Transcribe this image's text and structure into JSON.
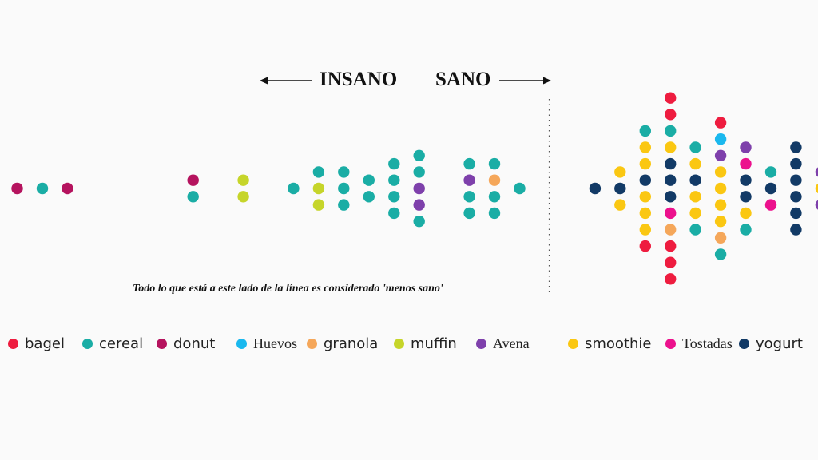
{
  "header": {
    "insano": "INSANO",
    "sano": "SANO"
  },
  "note": "Todo lo que está a este lado de la línea es considerado 'menos sano'",
  "colors": {
    "bagel": "#ee1c3f",
    "cereal": "#1aada5",
    "donut": "#b5135e",
    "Huevos": "#1ab8ee",
    "granola": "#f5a75a",
    "muffin": "#c6d52a",
    "Avena": "#7e40ab",
    "smoothie": "#fac712",
    "Tostadas": "#ec118d",
    "yogurt": "#123a66"
  },
  "legend": [
    {
      "key": "bagel",
      "label": "bagel"
    },
    {
      "key": "cereal",
      "label": "cereal"
    },
    {
      "key": "donut",
      "label": "donut"
    },
    {
      "key": "Huevos",
      "label": "Huevos",
      "serif": true
    },
    {
      "key": "granola",
      "label": "granola"
    },
    {
      "key": "muffin",
      "label": "muffin"
    },
    {
      "key": "Avena",
      "label": "Avena",
      "serif": true
    },
    {
      "key": "smoothie",
      "label": "smoothie"
    },
    {
      "key": "Tostadas",
      "label": "Tostadas",
      "serif": true
    },
    {
      "key": "yogurt",
      "label": "yogurt"
    }
  ],
  "chart_data": {
    "type": "scatter",
    "divider_after_column": 21,
    "columns": [
      [
        "donut"
      ],
      [
        "cereal"
      ],
      [
        "donut"
      ],
      [],
      [],
      [],
      [],
      [
        "donut",
        "cereal"
      ],
      [],
      [
        "muffin",
        "muffin"
      ],
      [],
      [
        "cereal"
      ],
      [
        "cereal",
        "muffin",
        "muffin"
      ],
      [
        "cereal",
        "cereal",
        "cereal"
      ],
      [
        "cereal",
        "cereal"
      ],
      [
        "cereal",
        "cereal",
        "cereal",
        "cereal"
      ],
      [
        "cereal",
        "cereal",
        "Avena",
        "Avena",
        "cereal"
      ],
      [],
      [
        "cereal",
        "Avena",
        "cereal",
        "cereal"
      ],
      [
        "cereal",
        "granola",
        "cereal",
        "cereal"
      ],
      [
        "cereal"
      ],
      [],
      [],
      [
        "yogurt"
      ],
      [
        "smoothie",
        "yogurt",
        "smoothie"
      ],
      [
        "cereal",
        "smoothie",
        "smoothie",
        "yogurt",
        "smoothie",
        "smoothie",
        "smoothie",
        "bagel"
      ],
      [
        "bagel",
        "bagel",
        "cereal",
        "smoothie",
        "yogurt",
        "yogurt",
        "yogurt",
        "Tostadas",
        "granola",
        "bagel",
        "bagel",
        "bagel"
      ],
      [
        "cereal",
        "smoothie",
        "yogurt",
        "smoothie",
        "smoothie",
        "cereal"
      ],
      [
        "bagel",
        "Huevos",
        "Avena",
        "smoothie",
        "smoothie",
        "smoothie",
        "smoothie",
        "granola",
        "cereal"
      ],
      [
        "Avena",
        "Tostadas",
        "yogurt",
        "yogurt",
        "smoothie",
        "cereal"
      ],
      [
        "cereal",
        "yogurt",
        "Tostadas"
      ],
      [
        "yogurt",
        "yogurt",
        "yogurt",
        "yogurt",
        "yogurt",
        "yogurt"
      ],
      [
        "Avena",
        "smoothie",
        "Avena"
      ]
    ]
  }
}
